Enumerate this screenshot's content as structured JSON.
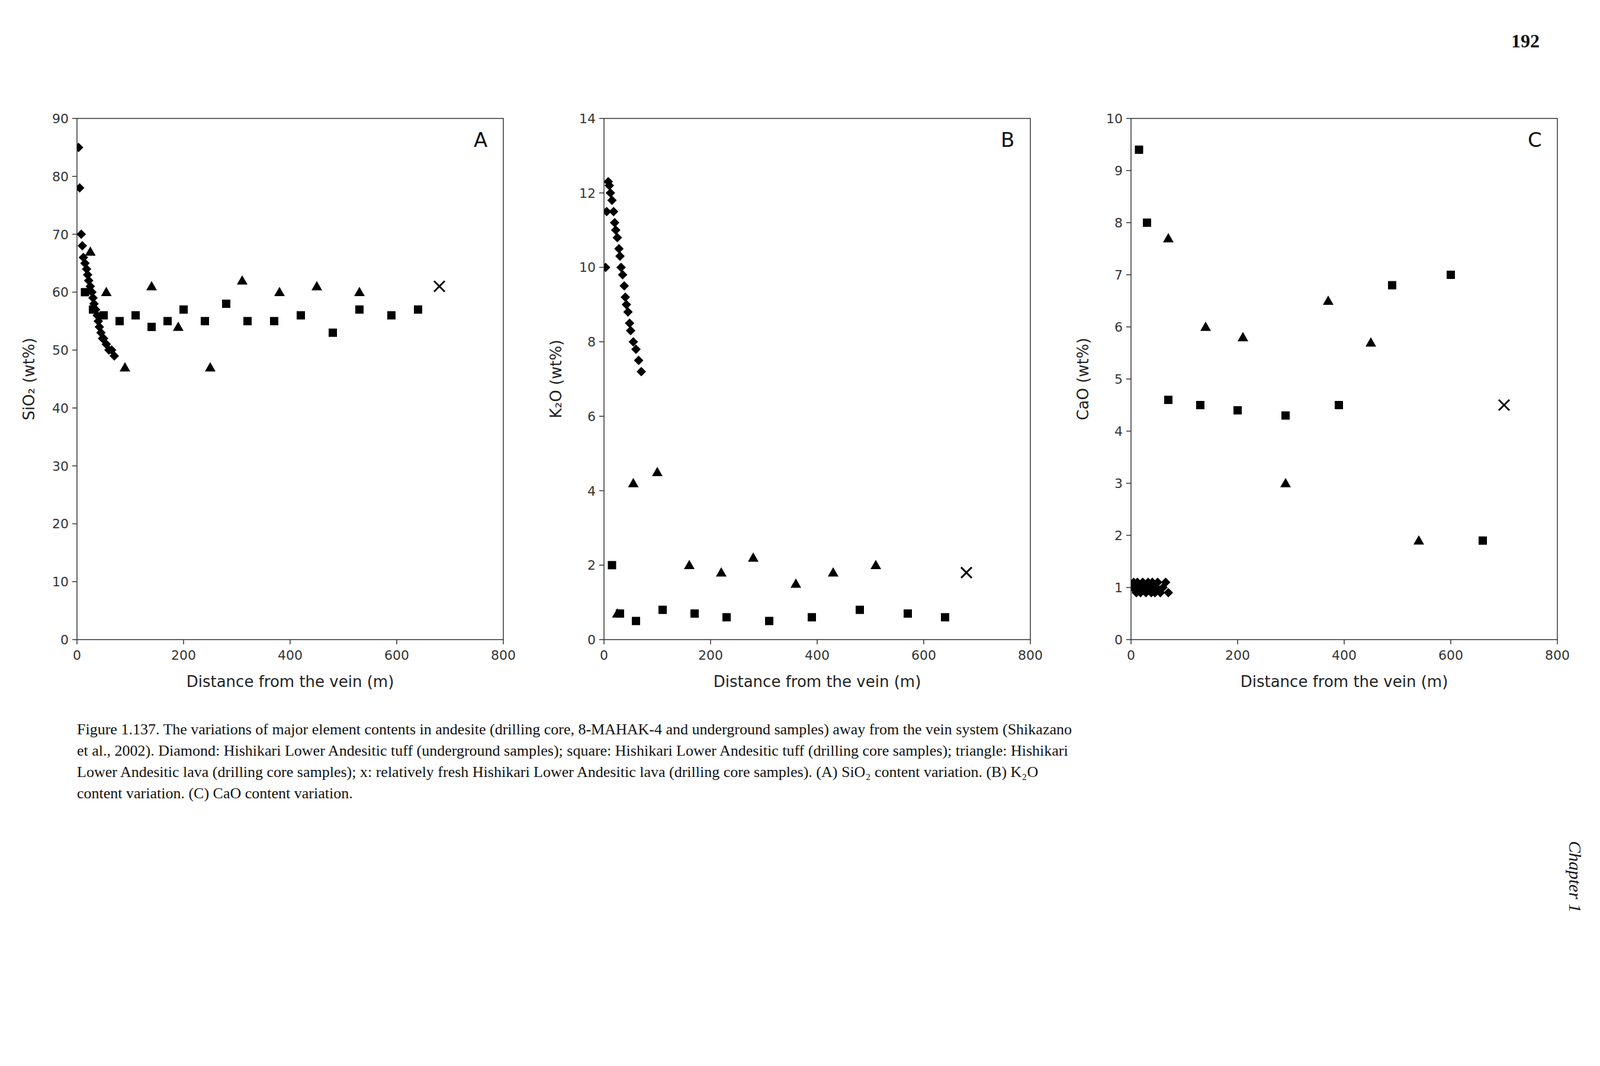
{
  "chart_data": [
    {
      "type": "scatter",
      "title": "A",
      "xlabel": "Distance from the vein (m)",
      "ylabel": "SiO₂ (wt%)",
      "xlim": [
        0,
        800
      ],
      "ylim": [
        0,
        90
      ],
      "xticks": [
        0,
        200,
        400,
        600,
        800
      ],
      "yticks": [
        0,
        10,
        20,
        30,
        40,
        50,
        60,
        70,
        80,
        90
      ],
      "grid": false,
      "series": [
        {
          "marker": "diamond",
          "color": "black",
          "x": [
            3,
            5,
            8,
            10,
            12,
            15,
            18,
            20,
            22,
            25,
            28,
            30,
            32,
            35,
            38,
            40,
            42,
            45,
            48,
            50,
            55,
            60,
            65,
            70
          ],
          "values": [
            85,
            78,
            70,
            68,
            66,
            65,
            64,
            63,
            62,
            61,
            60,
            59,
            58,
            57,
            56,
            55,
            54,
            53,
            52,
            52,
            51,
            50,
            50,
            49
          ]
        },
        {
          "marker": "square",
          "color": "black",
          "x": [
            15,
            30,
            50,
            80,
            110,
            140,
            170,
            200,
            240,
            280,
            320,
            370,
            420,
            480,
            530,
            590,
            640
          ],
          "values": [
            60,
            57,
            56,
            55,
            56,
            54,
            55,
            57,
            55,
            58,
            55,
            55,
            56,
            53,
            57,
            56,
            57
          ]
        },
        {
          "marker": "triangle",
          "color": "black",
          "x": [
            25,
            55,
            90,
            140,
            190,
            250,
            310,
            380,
            450,
            530
          ],
          "values": [
            67,
            60,
            47,
            61,
            54,
            47,
            62,
            60,
            61,
            60
          ]
        },
        {
          "marker": "x",
          "color": "black",
          "x": [
            680
          ],
          "values": [
            61
          ]
        }
      ]
    },
    {
      "type": "scatter",
      "title": "B",
      "xlabel": "Distance from the vein (m)",
      "ylabel": "K₂O (wt%)",
      "xlim": [
        0,
        800
      ],
      "ylim": [
        0,
        14
      ],
      "xticks": [
        0,
        200,
        400,
        600,
        800
      ],
      "yticks": [
        0,
        2,
        4,
        6,
        8,
        10,
        12,
        14
      ],
      "grid": false,
      "series": [
        {
          "marker": "diamond",
          "color": "black",
          "x": [
            3,
            5,
            8,
            10,
            12,
            15,
            18,
            20,
            22,
            25,
            28,
            30,
            32,
            35,
            38,
            40,
            42,
            45,
            48,
            50,
            55,
            60,
            65,
            70
          ],
          "values": [
            10.0,
            11.5,
            12.3,
            12.2,
            12.0,
            11.8,
            11.5,
            11.2,
            11.0,
            10.8,
            10.5,
            10.3,
            10.0,
            9.8,
            9.5,
            9.2,
            9.0,
            8.8,
            8.5,
            8.3,
            8.0,
            7.8,
            7.5,
            7.2
          ]
        },
        {
          "marker": "square",
          "color": "black",
          "x": [
            15,
            30,
            60,
            110,
            170,
            230,
            310,
            390,
            480,
            570,
            640
          ],
          "values": [
            2.0,
            0.7,
            0.5,
            0.8,
            0.7,
            0.6,
            0.5,
            0.6,
            0.8,
            0.7,
            0.6
          ]
        },
        {
          "marker": "triangle",
          "color": "black",
          "x": [
            25,
            55,
            100,
            160,
            220,
            280,
            360,
            430,
            510
          ],
          "values": [
            0.7,
            4.2,
            4.5,
            2.0,
            1.8,
            2.2,
            1.5,
            1.8,
            2.0
          ]
        },
        {
          "marker": "x",
          "color": "black",
          "x": [
            680
          ],
          "values": [
            1.8
          ]
        }
      ]
    },
    {
      "type": "scatter",
      "title": "C",
      "xlabel": "Distance from the vein (m)",
      "ylabel": "CaO (wt%)",
      "xlim": [
        0,
        800
      ],
      "ylim": [
        0,
        10
      ],
      "xticks": [
        0,
        200,
        400,
        600,
        800
      ],
      "yticks": [
        0,
        1,
        2,
        3,
        4,
        5,
        6,
        7,
        8,
        9,
        10
      ],
      "grid": false,
      "series": [
        {
          "marker": "diamond",
          "color": "black",
          "x": [
            3,
            5,
            8,
            10,
            12,
            15,
            18,
            20,
            22,
            25,
            28,
            30,
            32,
            35,
            38,
            40,
            42,
            45,
            48,
            50,
            55,
            60,
            65,
            70
          ],
          "values": [
            1.0,
            1.1,
            1.0,
            0.9,
            1.1,
            1.0,
            0.9,
            1.0,
            1.1,
            1.0,
            0.9,
            1.0,
            1.1,
            1.0,
            0.9,
            1.1,
            1.0,
            0.9,
            1.0,
            1.1,
            0.9,
            1.0,
            1.1,
            0.9
          ]
        },
        {
          "marker": "square",
          "color": "black",
          "x": [
            15,
            30,
            70,
            130,
            200,
            290,
            390,
            490,
            600,
            660
          ],
          "values": [
            9.4,
            8.0,
            4.6,
            4.5,
            4.4,
            4.3,
            4.5,
            6.8,
            7.0,
            1.9
          ]
        },
        {
          "marker": "triangle",
          "color": "black",
          "x": [
            25,
            70,
            140,
            210,
            290,
            370,
            450,
            540
          ],
          "values": [
            1.0,
            7.7,
            6.0,
            5.8,
            3.0,
            6.5,
            5.7,
            1.9
          ]
        },
        {
          "marker": "x",
          "color": "black",
          "x": [
            700
          ],
          "values": [
            4.5
          ]
        }
      ]
    }
  ],
  "annotations": [
    "Figure 1.137. The variations of major element contents in andesite (drilling core, 8-MAHAK-4 and underground samples) away from the vein system (Shikazano\net al., 2002). Diamond: Hishikari Lower Andesitic tuff (underground samples); square: Hishikari Lower Andesitic tuff (drilling core samples); triangle: Hishikari\nLower Andesitic lava (drilling core samples); x: relatively fresh Hishikari Lower Andesitic lava (drilling core samples). (A) SiO₂ content variation. (B) K₂O\ncontent variation. (C) CaO content variation.",
    "192",
    "Chapter 1"
  ]
}
